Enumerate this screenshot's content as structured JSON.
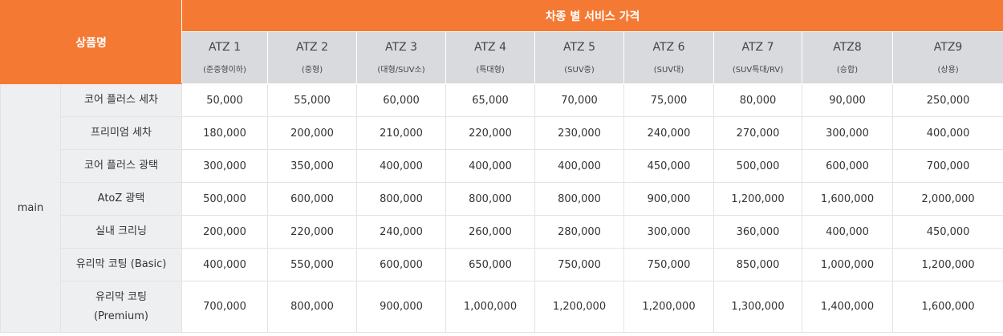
{
  "header": {
    "product_label": "상품명",
    "group_label": "차종 별 서비스 가격",
    "columns": [
      {
        "name": "ATZ 1",
        "sub": "(준중형이하)"
      },
      {
        "name": "ATZ 2",
        "sub": "(중형)"
      },
      {
        "name": "ATZ 3",
        "sub": "(대형/SUV소)"
      },
      {
        "name": "ATZ 4",
        "sub": "(특대형)"
      },
      {
        "name": "ATZ 5",
        "sub": "(SUV중)"
      },
      {
        "name": "ATZ 6",
        "sub": "(SUV대)"
      },
      {
        "name": "ATZ 7",
        "sub": "(SUV특대/RV)"
      },
      {
        "name": "ATZ8",
        "sub": "(승합)"
      },
      {
        "name": "ATZ9",
        "sub": "(상용)"
      }
    ]
  },
  "category": "main",
  "rows": [
    {
      "product": "코어 플러스 세차",
      "prices": [
        "50,000",
        "55,000",
        "60,000",
        "65,000",
        "70,000",
        "75,000",
        "80,000",
        "90,000",
        "250,000"
      ]
    },
    {
      "product": "프리미엄 세차",
      "prices": [
        "180,000",
        "200,000",
        "210,000",
        "220,000",
        "230,000",
        "240,000",
        "270,000",
        "300,000",
        "400,000"
      ]
    },
    {
      "product": "코어 플러스 광택",
      "prices": [
        "300,000",
        "350,000",
        "400,000",
        "400,000",
        "400,000",
        "450,000",
        "500,000",
        "600,000",
        "700,000"
      ]
    },
    {
      "product": "AtoZ 광택",
      "prices": [
        "500,000",
        "600,000",
        "800,000",
        "800,000",
        "800,000",
        "900,000",
        "1,200,000",
        "1,600,000",
        "2,000,000"
      ]
    },
    {
      "product": "실내 크리닝",
      "prices": [
        "200,000",
        "220,000",
        "240,000",
        "260,000",
        "280,000",
        "300,000",
        "360,000",
        "400,000",
        "450,000"
      ]
    },
    {
      "product": "유리막 코팅 (Basic)",
      "prices": [
        "400,000",
        "550,000",
        "600,000",
        "650,000",
        "750,000",
        "750,000",
        "850,000",
        "1,000,000",
        "1,200,000"
      ]
    },
    {
      "product": "유리막 코팅\n(Premium)",
      "prices": [
        "700,000",
        "800,000",
        "900,000",
        "1,000,000",
        "1,200,000",
        "1,200,000",
        "1,300,000",
        "1,400,000",
        "1,600,000"
      ]
    }
  ]
}
